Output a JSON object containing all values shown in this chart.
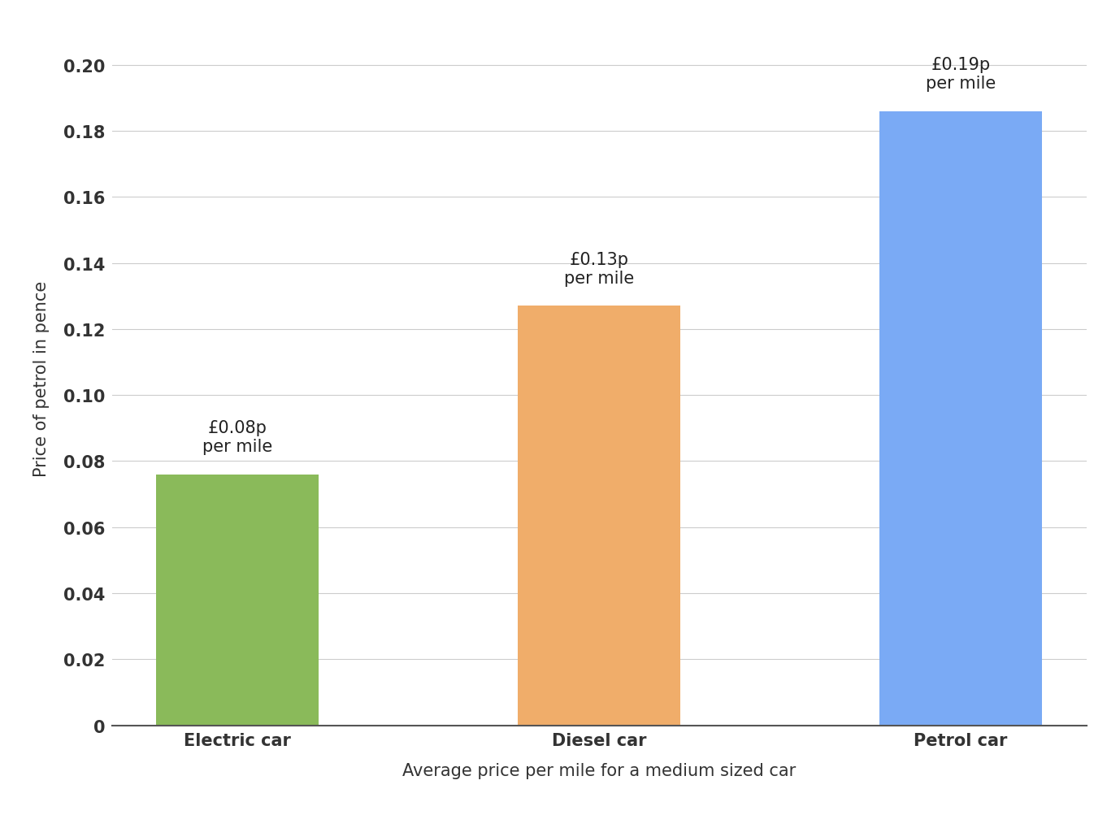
{
  "categories": [
    "Electric car",
    "Diesel car",
    "Petrol car"
  ],
  "values": [
    0.076,
    0.127,
    0.186
  ],
  "bar_colors": [
    "#8aba5a",
    "#f0ad6a",
    "#7aaaf5"
  ],
  "annotation_texts": [
    "£0.08p\nper mile",
    "£0.13p\nper mile",
    "£0.19p\nper mile"
  ],
  "annotation_offsets": [
    0.006,
    0.006,
    0.006
  ],
  "xlabel": "Average price per mile for a medium sized car",
  "ylabel": "Price of petrol in pence",
  "ylim": [
    0,
    0.21
  ],
  "ytick_values": [
    0,
    0.02,
    0.04,
    0.06,
    0.08,
    0.1,
    0.12,
    0.14,
    0.16,
    0.18,
    0.2
  ],
  "ytick_labels": [
    "0",
    "0.02",
    "0.04",
    "0.06",
    "0.08",
    "0.10",
    "0.12",
    "0.14",
    "0.16",
    "0.18",
    "0.20"
  ],
  "background_color": "#ffffff",
  "grid_color": "#cccccc",
  "xlabel_fontsize": 15,
  "ylabel_fontsize": 15,
  "tick_fontsize": 15,
  "annotation_fontsize": 15,
  "bar_width": 0.45
}
